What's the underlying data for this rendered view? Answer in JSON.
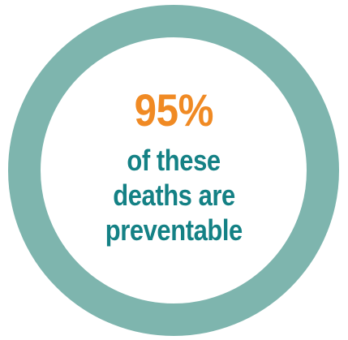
{
  "infographic": {
    "stat_value": "95%",
    "caption_lines": [
      "of these",
      "deaths are",
      "preventable"
    ]
  },
  "colors": {
    "ring": "#7eb5ae",
    "stat": "#f08a24",
    "caption": "#148185",
    "background": "#ffffff"
  }
}
